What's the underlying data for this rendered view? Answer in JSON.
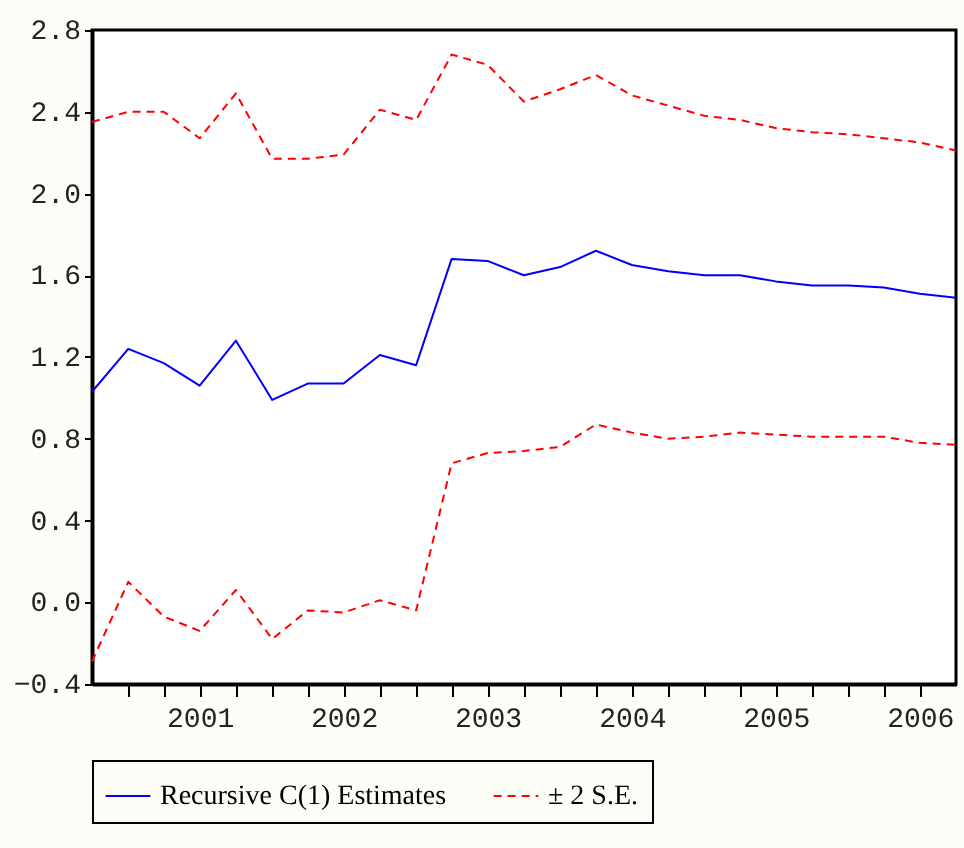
{
  "chart_data": {
    "type": "line",
    "x": [
      "2000-10",
      "2001-01",
      "2001-04",
      "2001-07",
      "2001-10",
      "2002-01",
      "2002-04",
      "2002-07",
      "2002-10",
      "2003-01",
      "2003-04",
      "2003-07",
      "2003-10",
      "2004-01",
      "2004-04",
      "2004-07",
      "2004-10",
      "2005-01",
      "2005-04",
      "2005-07",
      "2005-10",
      "2006-01",
      "2006-04",
      "2006-07",
      "2006-10"
    ],
    "series": [
      {
        "name": "Recursive C(1) Estimates",
        "color": "#0000ff",
        "line_style": "solid",
        "values": [
          1.03,
          1.24,
          1.17,
          1.06,
          1.28,
          0.99,
          1.07,
          1.07,
          1.21,
          1.16,
          1.68,
          1.67,
          1.6,
          1.64,
          1.72,
          1.65,
          1.62,
          1.6,
          1.6,
          1.57,
          1.55,
          1.55,
          1.54,
          1.51,
          1.49
        ]
      },
      {
        "name": "± 2 S.E.",
        "color": "#ff0000",
        "line_style": "dashed",
        "values": [
          2.35,
          2.4,
          2.4,
          2.27,
          2.49,
          2.17,
          2.17,
          2.19,
          2.41,
          2.36,
          2.68,
          2.63,
          2.45,
          2.51,
          2.58,
          2.48,
          2.43,
          2.38,
          2.36,
          2.32,
          2.3,
          2.29,
          2.27,
          2.25,
          2.21
        ]
      },
      {
        "color": "#ff0000",
        "line_style": "dashed",
        "values": [
          -0.29,
          0.1,
          -0.07,
          -0.14,
          0.06,
          -0.18,
          -0.04,
          -0.05,
          0.01,
          -0.04,
          0.68,
          0.73,
          0.74,
          0.76,
          0.87,
          0.83,
          0.8,
          0.81,
          0.83,
          0.82,
          0.81,
          0.81,
          0.81,
          0.78,
          0.77
        ]
      }
    ],
    "xlim": [
      "2000-10",
      "2006-10"
    ],
    "xticks": [
      {
        "value": "2001-01",
        "label": null
      },
      {
        "value": "2001-04",
        "label": null
      },
      {
        "value": "2001-07",
        "label": "2001"
      },
      {
        "value": "2001-10",
        "label": null
      },
      {
        "value": "2002-01",
        "label": null
      },
      {
        "value": "2002-04",
        "label": null
      },
      {
        "value": "2002-07",
        "label": "2002"
      },
      {
        "value": "2002-10",
        "label": null
      },
      {
        "value": "2003-01",
        "label": null
      },
      {
        "value": "2003-04",
        "label": null
      },
      {
        "value": "2003-07",
        "label": "2003"
      },
      {
        "value": "2003-10",
        "label": null
      },
      {
        "value": "2004-01",
        "label": null
      },
      {
        "value": "2004-04",
        "label": null
      },
      {
        "value": "2004-07",
        "label": "2004"
      },
      {
        "value": "2004-10",
        "label": null
      },
      {
        "value": "2005-01",
        "label": null
      },
      {
        "value": "2005-04",
        "label": null
      },
      {
        "value": "2005-07",
        "label": "2005"
      },
      {
        "value": "2005-10",
        "label": null
      },
      {
        "value": "2006-01",
        "label": null
      },
      {
        "value": "2006-04",
        "label": null
      },
      {
        "value": "2006-07",
        "label": "2006"
      }
    ],
    "ylim": [
      -0.4,
      2.8
    ],
    "yticks": [
      -0.4,
      {
        "value": 0,
        "label": "0.0"
      },
      0.4,
      0.8,
      1.2,
      1.6,
      {
        "value": 2,
        "label": "2.0"
      },
      2.4,
      2.8
    ],
    "grid": false,
    "legend": "bottom",
    "marker": "none"
  }
}
